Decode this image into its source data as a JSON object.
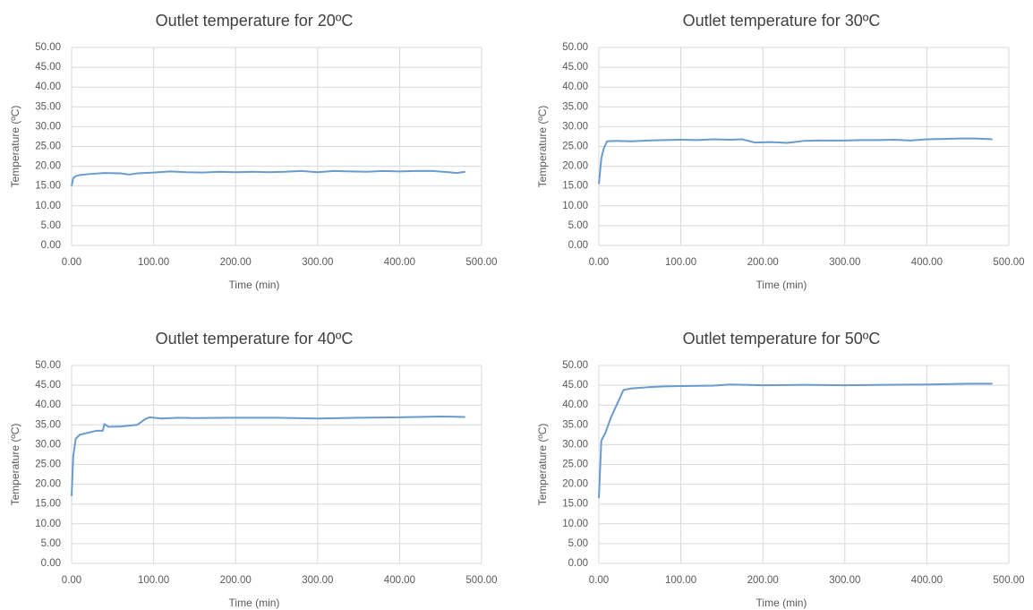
{
  "chart_data": [
    {
      "type": "line",
      "title": "Outlet temperature for 20ºC",
      "x_label": "Time (min)",
      "y_label": "Temperature (ºC)",
      "color": "#6a9bcf",
      "grid": true,
      "x": [
        0,
        2,
        5,
        10,
        20,
        40,
        60,
        70,
        80,
        100,
        120,
        140,
        160,
        180,
        200,
        220,
        240,
        260,
        280,
        300,
        320,
        340,
        360,
        380,
        400,
        420,
        440,
        460,
        470,
        480
      ],
      "values": [
        15,
        17,
        17.5,
        17.8,
        18,
        18.3,
        18.2,
        17.9,
        18.2,
        18.4,
        18.7,
        18.5,
        18.4,
        18.6,
        18.5,
        18.6,
        18.5,
        18.6,
        18.8,
        18.5,
        18.8,
        18.7,
        18.6,
        18.8,
        18.7,
        18.8,
        18.8,
        18.5,
        18.3,
        18.6
      ],
      "xlim": [
        0,
        500
      ],
      "ylim": [
        0,
        50
      ],
      "xticks": [
        {
          "value": 0,
          "label": "0.00"
        },
        {
          "value": 100,
          "label": "100.00"
        },
        {
          "value": 200,
          "label": "200.00"
        },
        {
          "value": 300,
          "label": "300.00"
        },
        {
          "value": 400,
          "label": "400.00"
        },
        {
          "value": 500,
          "label": "500.00"
        }
      ],
      "yticks": [
        {
          "value": 0,
          "label": "0.00"
        },
        {
          "value": 5,
          "label": "5.00"
        },
        {
          "value": 10,
          "label": "10.00"
        },
        {
          "value": 15,
          "label": "15.00"
        },
        {
          "value": 20,
          "label": "20.00"
        },
        {
          "value": 25,
          "label": "25.00"
        },
        {
          "value": 30,
          "label": "30.00"
        },
        {
          "value": 35,
          "label": "35.00"
        },
        {
          "value": 40,
          "label": "40.00"
        },
        {
          "value": 45,
          "label": "45.00"
        },
        {
          "value": 50,
          "label": "50.00"
        }
      ]
    },
    {
      "type": "line",
      "title": "Outlet temperature for 30ºC",
      "x_label": "Time (min)",
      "y_label": "Temperature (ºC)",
      "color": "#6a9bcf",
      "grid": true,
      "x": [
        0,
        3,
        6,
        10,
        20,
        40,
        60,
        80,
        100,
        120,
        140,
        160,
        175,
        190,
        210,
        230,
        250,
        270,
        300,
        320,
        340,
        360,
        380,
        400,
        420,
        440,
        460,
        480
      ],
      "values": [
        15.5,
        22,
        24.5,
        26.3,
        26.4,
        26.3,
        26.5,
        26.6,
        26.7,
        26.6,
        26.8,
        26.7,
        26.8,
        26.0,
        26.1,
        25.9,
        26.4,
        26.5,
        26.5,
        26.6,
        26.6,
        26.7,
        26.5,
        26.8,
        26.9,
        27.0,
        27.0,
        26.8
      ],
      "xlim": [
        0,
        500
      ],
      "ylim": [
        0,
        50
      ],
      "xticks": [
        {
          "value": 0,
          "label": "0.00"
        },
        {
          "value": 100,
          "label": "100.00"
        },
        {
          "value": 200,
          "label": "200.00"
        },
        {
          "value": 300,
          "label": "300.00"
        },
        {
          "value": 400,
          "label": "400.00"
        },
        {
          "value": 500,
          "label": "500.00"
        }
      ],
      "yticks": [
        {
          "value": 0,
          "label": "0.00"
        },
        {
          "value": 5,
          "label": "5.00"
        },
        {
          "value": 10,
          "label": "10.00"
        },
        {
          "value": 15,
          "label": "15.00"
        },
        {
          "value": 20,
          "label": "20.00"
        },
        {
          "value": 25,
          "label": "25.00"
        },
        {
          "value": 30,
          "label": "30.00"
        },
        {
          "value": 35,
          "label": "35.00"
        },
        {
          "value": 40,
          "label": "40.00"
        },
        {
          "value": 45,
          "label": "45.00"
        },
        {
          "value": 50,
          "label": "50.00"
        }
      ]
    },
    {
      "type": "line",
      "title": "Outlet temperature for 40ºC",
      "x_label": "Time (min)",
      "y_label": "Temperature (ºC)",
      "color": "#6a9bcf",
      "grid": true,
      "x": [
        0,
        2,
        5,
        10,
        20,
        30,
        38,
        40,
        45,
        60,
        80,
        90,
        95,
        110,
        130,
        150,
        200,
        250,
        300,
        350,
        400,
        450,
        480
      ],
      "values": [
        17,
        27,
        31.5,
        32.5,
        33,
        33.5,
        33.5,
        35.2,
        34.5,
        34.6,
        35,
        36.5,
        36.9,
        36.6,
        36.8,
        36.7,
        36.8,
        36.8,
        36.6,
        36.8,
        36.9,
        37.1,
        37
      ],
      "xlim": [
        0,
        500
      ],
      "ylim": [
        0,
        50
      ],
      "xticks": [
        {
          "value": 0,
          "label": "0.00"
        },
        {
          "value": 100,
          "label": "100.00"
        },
        {
          "value": 200,
          "label": "200.00"
        },
        {
          "value": 300,
          "label": "300.00"
        },
        {
          "value": 400,
          "label": "400.00"
        },
        {
          "value": 500,
          "label": "500.00"
        }
      ],
      "yticks": [
        {
          "value": 0,
          "label": "0.00"
        },
        {
          "value": 5,
          "label": "5.00"
        },
        {
          "value": 10,
          "label": "10.00"
        },
        {
          "value": 15,
          "label": "15.00"
        },
        {
          "value": 20,
          "label": "20.00"
        },
        {
          "value": 25,
          "label": "25.00"
        },
        {
          "value": 30,
          "label": "30.00"
        },
        {
          "value": 35,
          "label": "35.00"
        },
        {
          "value": 40,
          "label": "40.00"
        },
        {
          "value": 45,
          "label": "45.00"
        },
        {
          "value": 50,
          "label": "50.00"
        }
      ]
    },
    {
      "type": "line",
      "title": "Outlet temperature for 50ºC",
      "x_label": "Time (min)",
      "y_label": "Temperature (ºC)",
      "color": "#6a9bcf",
      "grid": true,
      "x": [
        0,
        3,
        8,
        15,
        25,
        30,
        40,
        60,
        80,
        100,
        140,
        160,
        200,
        250,
        300,
        350,
        400,
        450,
        480
      ],
      "values": [
        16.5,
        31,
        33,
        37,
        41.5,
        43.8,
        44.2,
        44.5,
        44.7,
        44.8,
        44.9,
        45.2,
        45,
        45.1,
        45,
        45.1,
        45.2,
        45.4,
        45.4
      ],
      "xlim": [
        0,
        500
      ],
      "ylim": [
        0,
        50
      ],
      "xticks": [
        {
          "value": 0,
          "label": "0.00"
        },
        {
          "value": 100,
          "label": "100.00"
        },
        {
          "value": 200,
          "label": "200.00"
        },
        {
          "value": 300,
          "label": "300.00"
        },
        {
          "value": 400,
          "label": "400.00"
        },
        {
          "value": 500,
          "label": "500.00"
        }
      ],
      "yticks": [
        {
          "value": 0,
          "label": "0.00"
        },
        {
          "value": 5,
          "label": "5.00"
        },
        {
          "value": 10,
          "label": "10.00"
        },
        {
          "value": 15,
          "label": "15.00"
        },
        {
          "value": 20,
          "label": "20.00"
        },
        {
          "value": 25,
          "label": "25.00"
        },
        {
          "value": 30,
          "label": "30.00"
        },
        {
          "value": 35,
          "label": "35.00"
        },
        {
          "value": 40,
          "label": "40.00"
        },
        {
          "value": 45,
          "label": "45.00"
        },
        {
          "value": 50,
          "label": "50.00"
        }
      ]
    }
  ]
}
